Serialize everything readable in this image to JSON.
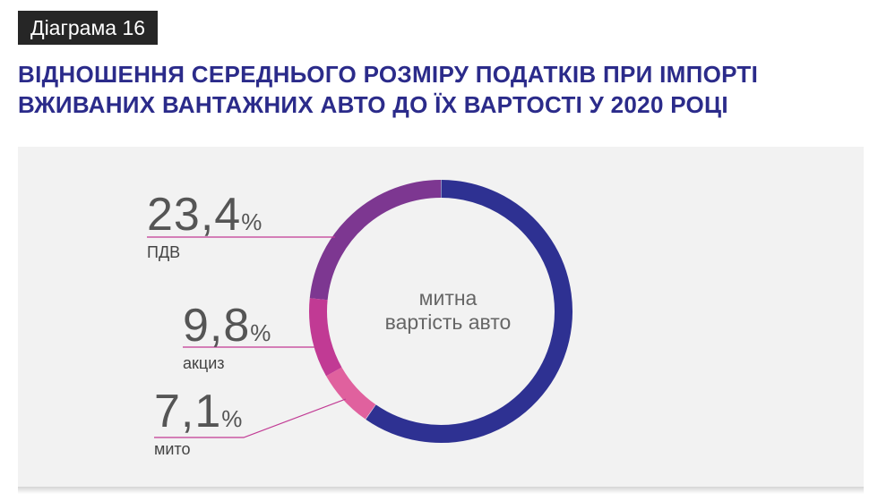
{
  "badge": "Діаграма 16",
  "title_lines": [
    "ВІДНОШЕННЯ СЕРЕДНЬОГО РОЗМІРУ ПОДАТКІВ ПРИ ІМПОРТІ",
    "ВЖИВАНИХ ВАНТАЖНИХ АВТО ДО ЇХ ВАРТОСТІ У 2020 РОЦІ"
  ],
  "chart_data": {
    "type": "pie",
    "title": "ВІДНОШЕННЯ СЕРЕДНЬОГО РОЗМІРУ ПОДАТКІВ ПРИ ІМПОРТІ ВЖИВАНИХ ВАНТАЖНИХ АВТО ДО ЇХ ВАРТОСТІ У 2020 РОЦІ",
    "center_label": [
      "митна",
      "вартість авто"
    ],
    "slices": [
      {
        "label": "ПДВ",
        "value_text": "23,4",
        "unit": "%",
        "value": 23.4,
        "color": "#7d3791"
      },
      {
        "label": "акциз",
        "value_text": "9,8",
        "unit": "%",
        "value": 9.8,
        "color": "#c13a94"
      },
      {
        "label": "мито",
        "value_text": "7,1",
        "unit": "%",
        "value": 7.1,
        "color": "#e0619e"
      }
    ],
    "base_color": "#2e3192",
    "line_color": "#c13a94"
  }
}
